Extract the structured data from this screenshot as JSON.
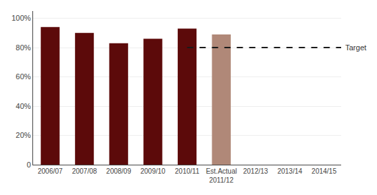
{
  "chart_data": {
    "type": "bar",
    "categories": [
      "2006/07",
      "2007/08",
      "2008/09",
      "2009/10",
      "2010/11",
      "Est.Actual\n2011/12",
      "2012/13",
      "2013/14",
      "2014/15"
    ],
    "values": [
      94,
      90,
      83,
      86,
      93,
      89,
      null,
      null,
      null
    ],
    "colors": [
      "#5c0a0a",
      "#5c0a0a",
      "#5c0a0a",
      "#5c0a0a",
      "#5c0a0a",
      "#b08878",
      null,
      null,
      null
    ],
    "reference_lines": [
      {
        "value": 80,
        "label": "Target",
        "color": "#1a1a1a",
        "line_style": "dashed",
        "from": "2010/11"
      }
    ],
    "ylim": [
      0,
      105
    ],
    "yticks": [
      0,
      {
        "value": 20,
        "label": "20%"
      },
      {
        "value": 40,
        "label": "40%"
      },
      {
        "value": 60,
        "label": "60%"
      },
      {
        "value": 80,
        "label": "80%"
      },
      {
        "value": 100,
        "label": "100%"
      }
    ],
    "grid": true
  }
}
